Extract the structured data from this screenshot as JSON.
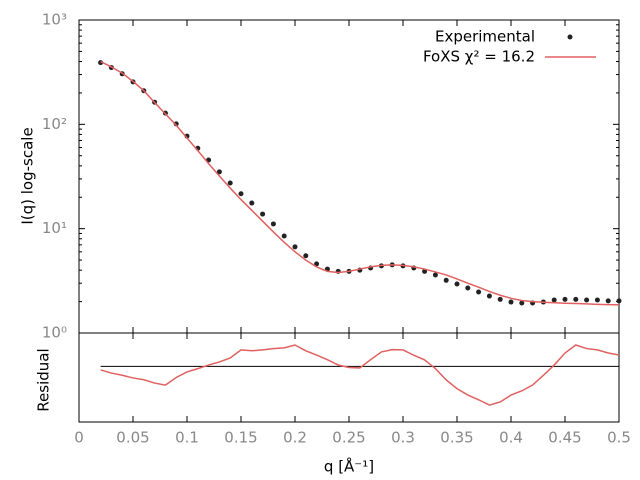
{
  "chart_data": [
    {
      "type": "line",
      "ylabel": "I(q) log-scale",
      "log_scale": true,
      "legend": "upper right",
      "x": [
        0.02,
        0.03,
        0.04,
        0.05,
        0.06,
        0.07,
        0.08,
        0.09,
        0.1,
        0.11,
        0.12,
        0.13,
        0.14,
        0.15,
        0.16,
        0.17,
        0.18,
        0.19,
        0.2,
        0.21,
        0.22,
        0.23,
        0.24,
        0.25,
        0.26,
        0.27,
        0.28,
        0.29,
        0.3,
        0.31,
        0.32,
        0.33,
        0.34,
        0.35,
        0.36,
        0.37,
        0.38,
        0.39,
        0.4,
        0.41,
        0.42,
        0.43,
        0.44,
        0.45,
        0.46,
        0.47,
        0.48,
        0.49,
        0.5
      ],
      "xlim": [
        0,
        0.5
      ],
      "xticks": [
        0,
        0.05,
        0.1,
        0.15,
        0.2,
        0.25,
        0.3,
        0.35,
        0.4,
        0.45,
        0.5
      ],
      "ylim": [
        1,
        1000
      ],
      "yticks": [
        {
          "value": 1,
          "label": "10⁰"
        },
        {
          "value": 10,
          "label": "10¹"
        },
        {
          "value": 100,
          "label": "10²"
        },
        {
          "value": 1000,
          "label": "10³"
        }
      ],
      "series": [
        {
          "name": "Experimental",
          "color": "#222222",
          "marker": "dot",
          "values": [
            390,
            350,
            305,
            255,
            210,
            163,
            128,
            101,
            77,
            59,
            45.5,
            35,
            27.4,
            21.6,
            17.6,
            13.8,
            11.1,
            8.5,
            6.7,
            5.5,
            4.6,
            4.1,
            3.9,
            3.9,
            4.0,
            4.2,
            4.4,
            4.5,
            4.4,
            4.2,
            3.9,
            3.6,
            3.2,
            2.95,
            2.7,
            2.47,
            2.26,
            2.1,
            1.98,
            1.94,
            1.94,
            1.98,
            2.07,
            2.1,
            2.1,
            2.07,
            2.07,
            2.03,
            2.03
          ]
        },
        {
          "name": "FoXS χ² = 16.2",
          "color": "#e06060",
          "values": [
            400,
            355,
            310,
            258,
            210,
            162,
            126,
            98,
            74,
            56,
            42,
            32,
            24.5,
            19,
            15,
            11.8,
            9.3,
            7.4,
            6.0,
            5.0,
            4.3,
            3.9,
            3.8,
            3.9,
            4.1,
            4.3,
            4.45,
            4.5,
            4.45,
            4.3,
            4.1,
            3.85,
            3.6,
            3.3,
            3.0,
            2.75,
            2.5,
            2.3,
            2.15,
            2.05,
            2.0,
            1.97,
            1.95,
            1.93,
            1.92,
            1.9,
            1.88,
            1.87,
            1.86
          ]
        }
      ]
    },
    {
      "type": "line",
      "ylabel": "Residual",
      "xlabel": "q [Å⁻¹]",
      "x": [
        0.02,
        0.03,
        0.04,
        0.05,
        0.06,
        0.07,
        0.08,
        0.09,
        0.1,
        0.11,
        0.12,
        0.13,
        0.14,
        0.15,
        0.16,
        0.17,
        0.18,
        0.19,
        0.2,
        0.21,
        0.22,
        0.23,
        0.24,
        0.25,
        0.26,
        0.27,
        0.28,
        0.29,
        0.3,
        0.31,
        0.32,
        0.33,
        0.34,
        0.35,
        0.36,
        0.37,
        0.38,
        0.39,
        0.4,
        0.41,
        0.42,
        0.43,
        0.44,
        0.45,
        0.46,
        0.47,
        0.48,
        0.49,
        0.5
      ],
      "xlim": [
        0,
        0.5
      ],
      "xticks": [
        0,
        0.05,
        0.1,
        0.15,
        0.2,
        0.25,
        0.3,
        0.35,
        0.4,
        0.45,
        0.5
      ],
      "ylim": [
        -2.5,
        1.5
      ],
      "series": [
        {
          "color": "#e06060",
          "values": [
            -0.16,
            -0.3,
            -0.4,
            -0.52,
            -0.6,
            -0.75,
            -0.84,
            -0.5,
            -0.25,
            -0.1,
            0.06,
            0.2,
            0.38,
            0.74,
            0.7,
            0.74,
            0.8,
            0.83,
            0.96,
            0.7,
            0.51,
            0.3,
            0.06,
            -0.05,
            -0.07,
            0.3,
            0.65,
            0.75,
            0.74,
            0.5,
            0.29,
            -0.1,
            -0.61,
            -1.0,
            -1.29,
            -1.5,
            -1.74,
            -1.6,
            -1.29,
            -1.1,
            -0.84,
            -0.4,
            0.06,
            0.6,
            0.96,
            0.8,
            0.74,
            0.6,
            0.51
          ]
        }
      ]
    }
  ]
}
